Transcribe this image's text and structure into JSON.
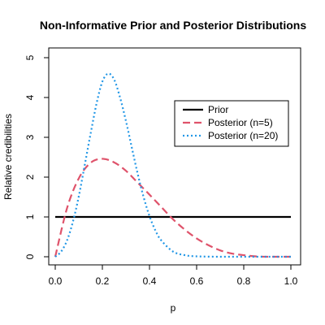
{
  "chart_data": {
    "type": "line",
    "title": "Non-Informative Prior and Posterior Distributions",
    "xlabel": "p",
    "ylabel": "Relative credibilities",
    "xlim": [
      0,
      1
    ],
    "ylim": [
      0,
      5
    ],
    "x_ticks": [
      "0.0",
      "0.2",
      "0.4",
      "0.6",
      "0.8",
      "1.0"
    ],
    "y_ticks": [
      "0",
      "1",
      "2",
      "3",
      "4",
      "5"
    ],
    "grid": false,
    "legend_position": "top-right",
    "series": [
      {
        "name": "Prior",
        "color": "#000000",
        "dash": "solid",
        "x": [
          0.0,
          0.1,
          0.2,
          0.3,
          0.4,
          0.5,
          0.6,
          0.7,
          0.8,
          0.9,
          1.0
        ],
        "y": [
          1,
          1,
          1,
          1,
          1,
          1,
          1,
          1,
          1,
          1,
          1
        ]
      },
      {
        "name": "Posterior (n=5)",
        "color": "#DF536B",
        "dash": "dashed",
        "x": [
          0.0,
          0.05,
          0.1,
          0.15,
          0.2,
          0.25,
          0.3,
          0.35,
          0.4,
          0.45,
          0.5,
          0.55,
          0.6,
          0.65,
          0.7,
          0.75,
          0.8,
          0.85,
          0.9,
          0.95,
          1.0
        ],
        "y": [
          0.0,
          1.22,
          1.97,
          2.36,
          2.46,
          2.37,
          2.16,
          1.86,
          1.56,
          1.25,
          0.94,
          0.68,
          0.46,
          0.29,
          0.16,
          0.08,
          0.04,
          0.01,
          0.0,
          0.0,
          0.0
        ]
      },
      {
        "name": "Posterior (n=20)",
        "color": "#2297E6",
        "dash": "dotted",
        "x": [
          0.0,
          0.025,
          0.05,
          0.075,
          0.1,
          0.125,
          0.15,
          0.175,
          0.2,
          0.225,
          0.25,
          0.275,
          0.3,
          0.325,
          0.35,
          0.375,
          0.4,
          0.425,
          0.45,
          0.5,
          0.55,
          0.6,
          0.7,
          0.8,
          0.9,
          1.0
        ],
        "y": [
          0.0,
          0.13,
          0.41,
          0.88,
          1.52,
          2.3,
          3.09,
          3.84,
          4.4,
          4.6,
          4.45,
          4.0,
          3.41,
          2.74,
          2.08,
          1.5,
          1.02,
          0.66,
          0.41,
          0.13,
          0.04,
          0.01,
          0.0,
          0.0,
          0.0,
          0.0
        ]
      }
    ]
  }
}
